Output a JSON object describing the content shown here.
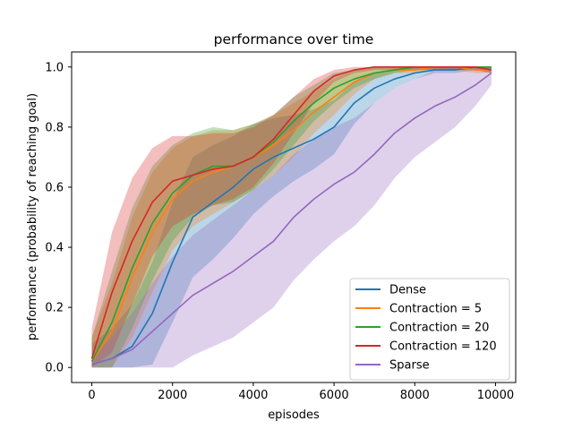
{
  "chart_data": {
    "type": "line",
    "title": "performance over time",
    "xlabel": "episodes",
    "ylabel": "performance (probability of reaching goal)",
    "xlim": [
      -500,
      10500
    ],
    "ylim": [
      -0.05,
      1.05
    ],
    "xticks": [
      0,
      2000,
      4000,
      6000,
      8000,
      10000
    ],
    "xtick_labels": [
      "0",
      "2000",
      "4000",
      "6000",
      "8000",
      "10000"
    ],
    "yticks": [
      0.0,
      0.2,
      0.4,
      0.6,
      0.8,
      1.0
    ],
    "ytick_labels": [
      "0.0",
      "0.2",
      "0.4",
      "0.6",
      "0.8",
      "1.0"
    ],
    "grid": false,
    "legend_position": "lower-right",
    "x": [
      0,
      500,
      1000,
      1500,
      2000,
      2500,
      3000,
      3500,
      4000,
      4500,
      5000,
      5500,
      6000,
      6500,
      7000,
      7500,
      8000,
      8500,
      9000,
      9500,
      9900
    ],
    "series": [
      {
        "name": "Dense",
        "color": "#1f77b4",
        "values": [
          0.01,
          0.03,
          0.07,
          0.18,
          0.35,
          0.5,
          0.55,
          0.6,
          0.66,
          0.7,
          0.73,
          0.76,
          0.8,
          0.88,
          0.93,
          0.96,
          0.98,
          0.99,
          0.99,
          1.0,
          0.99
        ],
        "band": [
          0.07,
          0.1,
          0.14,
          0.17,
          0.2,
          0.2,
          0.19,
          0.17,
          0.15,
          0.13,
          0.11,
          0.1,
          0.09,
          0.07,
          0.05,
          0.03,
          0.02,
          0.01,
          0.01,
          0.01,
          0.01
        ]
      },
      {
        "name": "Contraction = 5",
        "color": "#ff7f0e",
        "values": [
          0.02,
          0.12,
          0.3,
          0.45,
          0.56,
          0.62,
          0.65,
          0.67,
          0.7,
          0.74,
          0.79,
          0.85,
          0.9,
          0.95,
          0.98,
          0.99,
          0.99,
          1.0,
          1.0,
          0.99,
          0.99
        ],
        "band": [
          0.08,
          0.16,
          0.2,
          0.2,
          0.17,
          0.15,
          0.14,
          0.12,
          0.11,
          0.1,
          0.09,
          0.07,
          0.06,
          0.04,
          0.02,
          0.01,
          0.01,
          0.01,
          0.01,
          0.01,
          0.01
        ]
      },
      {
        "name": "Contraction = 20",
        "color": "#2ca02c",
        "values": [
          0.02,
          0.15,
          0.33,
          0.48,
          0.58,
          0.64,
          0.67,
          0.67,
          0.7,
          0.75,
          0.82,
          0.88,
          0.93,
          0.96,
          0.98,
          0.99,
          1.0,
          1.0,
          1.0,
          1.0,
          1.0
        ],
        "band": [
          0.08,
          0.17,
          0.2,
          0.19,
          0.16,
          0.14,
          0.13,
          0.12,
          0.11,
          0.09,
          0.08,
          0.06,
          0.05,
          0.03,
          0.02,
          0.01,
          0.01,
          0.01,
          0.01,
          0.01,
          0.01
        ]
      },
      {
        "name": "Contraction = 120",
        "color": "#d62728",
        "values": [
          0.03,
          0.25,
          0.42,
          0.55,
          0.62,
          0.64,
          0.66,
          0.67,
          0.7,
          0.76,
          0.84,
          0.92,
          0.97,
          0.99,
          1.0,
          1.0,
          1.0,
          1.0,
          1.0,
          1.0,
          0.99
        ],
        "band": [
          0.1,
          0.2,
          0.21,
          0.18,
          0.15,
          0.13,
          0.12,
          0.11,
          0.1,
          0.08,
          0.06,
          0.04,
          0.02,
          0.01,
          0.01,
          0.01,
          0.01,
          0.01,
          0.01,
          0.01,
          0.01
        ]
      },
      {
        "name": "Sparse",
        "color": "#9467bd",
        "values": [
          0.01,
          0.03,
          0.06,
          0.12,
          0.18,
          0.24,
          0.28,
          0.32,
          0.37,
          0.42,
          0.5,
          0.56,
          0.61,
          0.65,
          0.71,
          0.78,
          0.83,
          0.87,
          0.9,
          0.94,
          0.98
        ],
        "band": [
          0.03,
          0.07,
          0.12,
          0.16,
          0.19,
          0.2,
          0.21,
          0.22,
          0.22,
          0.22,
          0.21,
          0.2,
          0.19,
          0.18,
          0.17,
          0.15,
          0.13,
          0.12,
          0.1,
          0.07,
          0.04
        ]
      }
    ]
  }
}
